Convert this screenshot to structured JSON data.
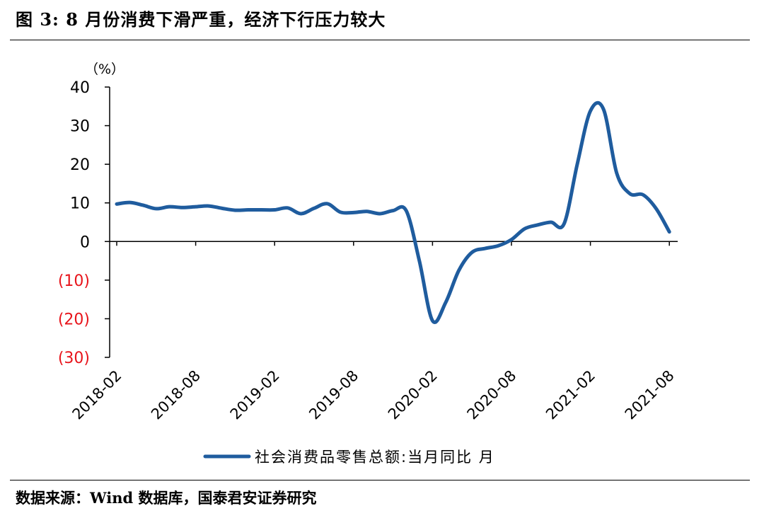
{
  "figure_title": "图 3:  8 月份消费下滑严重，经济下行压力较大",
  "source_text": "数据来源：Wind 数据库，国泰君安证券研究",
  "colors": {
    "series_line": "#1f5c9e",
    "negative_tick": "#e8141b",
    "axis": "#000000"
  },
  "chart_data": {
    "type": "line",
    "title": "",
    "ylabel": "（%）",
    "xlabel": "",
    "ylim": [
      -30,
      40
    ],
    "y_ticks": [
      {
        "value": 40,
        "label": "40"
      },
      {
        "value": 30,
        "label": "30"
      },
      {
        "value": 20,
        "label": "20"
      },
      {
        "value": 10,
        "label": "10"
      },
      {
        "value": 0,
        "label": "0"
      },
      {
        "value": -10,
        "label": "(10)"
      },
      {
        "value": -20,
        "label": "(20)"
      },
      {
        "value": -30,
        "label": "(30)"
      }
    ],
    "x_tick_labels": [
      "2018-02",
      "2018-08",
      "2019-02",
      "2019-08",
      "2020-02",
      "2020-08",
      "2021-02",
      "2021-08"
    ],
    "legend_position": "bottom",
    "grid": false,
    "series": [
      {
        "name": "社会消费品零售总额:当月同比  月",
        "x": [
          "2018-02",
          "2018-03",
          "2018-04",
          "2018-05",
          "2018-06",
          "2018-07",
          "2018-08",
          "2018-09",
          "2018-10",
          "2018-11",
          "2018-12",
          "2019-01",
          "2019-02",
          "2019-03",
          "2019-04",
          "2019-05",
          "2019-06",
          "2019-07",
          "2019-08",
          "2019-09",
          "2019-10",
          "2019-11",
          "2019-12",
          "2020-01",
          "2020-02",
          "2020-03",
          "2020-04",
          "2020-05",
          "2020-06",
          "2020-07",
          "2020-08",
          "2020-09",
          "2020-10",
          "2020-11",
          "2020-12",
          "2021-01",
          "2021-02",
          "2021-03",
          "2021-04",
          "2021-05",
          "2021-06",
          "2021-07",
          "2021-08"
        ],
        "values": [
          9.7,
          10.1,
          9.4,
          8.5,
          9.0,
          8.8,
          9.0,
          9.2,
          8.6,
          8.1,
          8.2,
          8.2,
          8.2,
          8.7,
          7.2,
          8.6,
          9.8,
          7.6,
          7.5,
          7.8,
          7.2,
          8.0,
          8.0,
          -5.0,
          -20.5,
          -15.8,
          -7.5,
          -2.8,
          -1.8,
          -1.1,
          0.5,
          3.3,
          4.3,
          5.0,
          4.6,
          20.0,
          33.8,
          34.2,
          17.7,
          12.4,
          12.1,
          8.5,
          2.5
        ]
      }
    ]
  }
}
